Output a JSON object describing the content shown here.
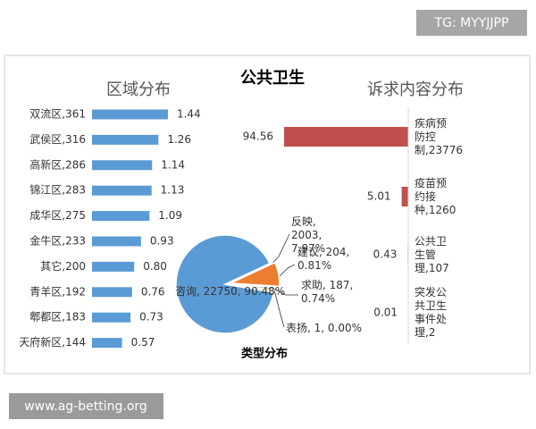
{
  "watermark": "TG: MYYJJPP",
  "footer_url": "www.ag-betting.org",
  "title": "公共卫生",
  "chart_data": [
    {
      "type": "bar",
      "orientation": "horizontal",
      "title": "区域分布",
      "color": "#5b9bd5",
      "categories": [
        "双流区,361",
        "武侯区,316",
        "高新区,286",
        "锦江区,283",
        "成华区,275",
        "金牛区,233",
        "其它,200",
        "青羊区,192",
        "郫都区,183",
        "天府新区,144"
      ],
      "values": [
        1.44,
        1.26,
        1.14,
        1.13,
        1.09,
        0.93,
        0.8,
        0.76,
        0.73,
        0.57
      ],
      "value_labels": [
        "1.44",
        "1.26",
        "1.14",
        "1.13",
        "1.09",
        "0.93",
        "0.80",
        "0.76",
        "0.73",
        "0.57"
      ]
    },
    {
      "type": "bar",
      "orientation": "horizontal",
      "reversed": true,
      "title": "诉求内容分布",
      "color": "#c0504d",
      "categories": [
        "疾病预防控制,23776",
        "疫苗预约接种,1260",
        "公共卫生管理,107",
        "突发公共卫生事件处理,2"
      ],
      "values": [
        94.56,
        5.01,
        0.43,
        0.01
      ]
    },
    {
      "type": "pie",
      "title": "类型分布",
      "categories": [
        "咨询",
        "反映",
        "建议",
        "求助",
        "表扬"
      ],
      "values": [
        22750,
        2003,
        204,
        187,
        1
      ],
      "value_labels": [
        "咨询, 22750, 90.48%",
        "反映, 2003, 7.97%",
        "建议, 204, 0.81%",
        "求助, 187, 0.74%",
        "表扬, 1, 0.00%"
      ],
      "colors": [
        "#5b9bd5",
        "#ed7d31",
        "#a5a5a5",
        "#ffc000",
        "#4472c4"
      ]
    }
  ]
}
